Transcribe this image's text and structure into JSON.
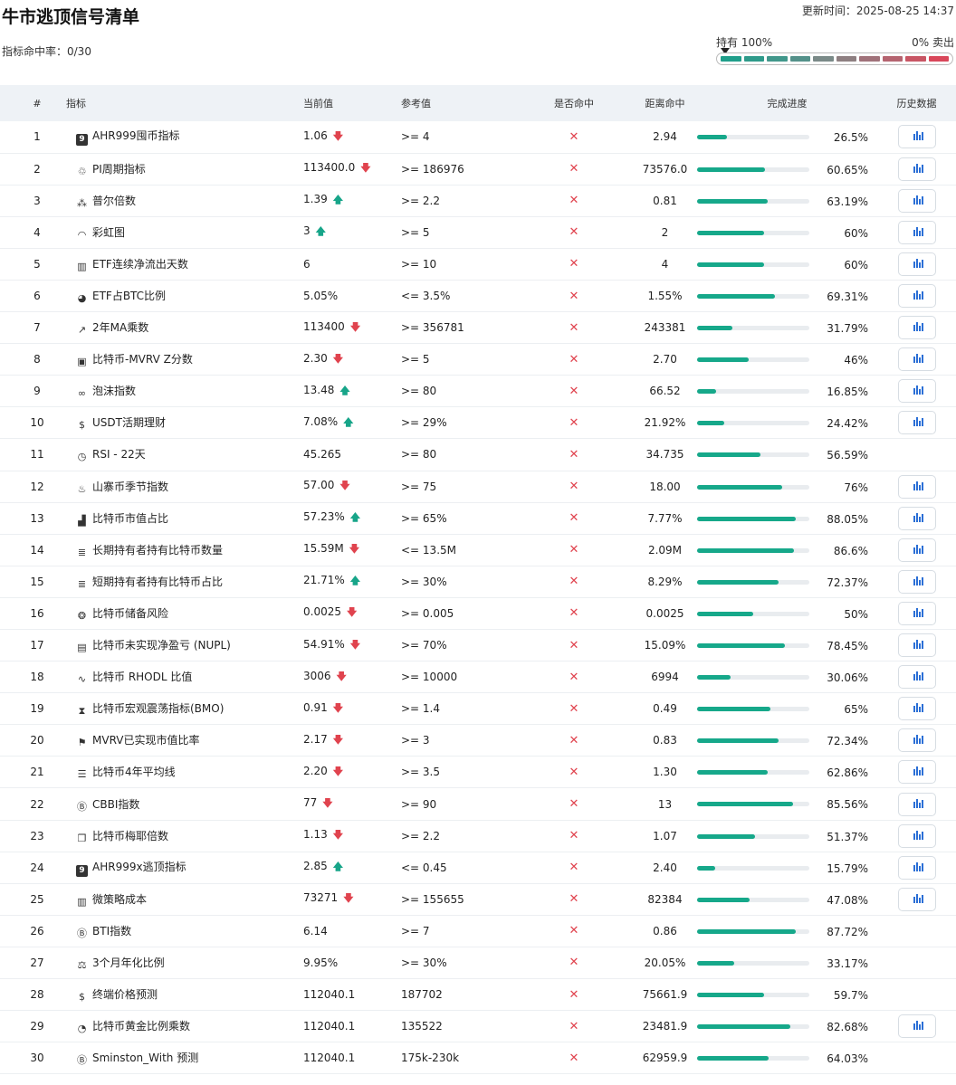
{
  "page_title": "牛市逃顶信号清单",
  "updated_time": "更新时间：2025-08-25 14:37",
  "hit_rate": "指标命中率：0/30",
  "gauge": {
    "left_label": "持有 100%",
    "right_label": "0% 卖出",
    "segments": [
      "#1f9e8a",
      "#2e9a8a",
      "#41978b",
      "#54918a",
      "#7a8a88",
      "#8e7f81",
      "#a0727a",
      "#b56470",
      "#c85664",
      "#d9475a"
    ]
  },
  "columns": [
    "#",
    "指标",
    "当前值",
    "参考值",
    "是否命中",
    "距离命中",
    "完成进度",
    "历史数据"
  ],
  "rows": [
    {
      "num": "1",
      "icon": "9",
      "iconbox": true,
      "name": "AHR999囤币指标",
      "current": "1.06",
      "arrow": "down",
      "ref": ">= 4",
      "distance": "2.94",
      "pct": 26.5,
      "pct_label": "26.5%",
      "history": true
    },
    {
      "num": "2",
      "icon": "♲",
      "name": "PI周期指标",
      "current": "113400.0",
      "arrow": "down",
      "ref": ">= 186976",
      "distance": "73576.0",
      "pct": 60.65,
      "pct_label": "60.65%",
      "history": true
    },
    {
      "num": "3",
      "icon": "⁂",
      "name": "普尔倍数",
      "current": "1.39",
      "arrow": "up",
      "ref": ">= 2.2",
      "distance": "0.81",
      "pct": 63.19,
      "pct_label": "63.19%",
      "history": true
    },
    {
      "num": "4",
      "icon": "◠",
      "name": "彩虹图",
      "current": "3",
      "arrow": "up",
      "ref": ">= 5",
      "distance": "2",
      "pct": 60,
      "pct_label": "60%",
      "history": true
    },
    {
      "num": "5",
      "icon": "▥",
      "name": "ETF连续净流出天数",
      "current": "6",
      "arrow": "",
      "ref": ">= 10",
      "distance": "4",
      "pct": 60,
      "pct_label": "60%",
      "history": true
    },
    {
      "num": "6",
      "icon": "◕",
      "name": "ETF占BTC比例",
      "current": "5.05%",
      "arrow": "",
      "ref": "<= 3.5%",
      "distance": "1.55%",
      "pct": 69.31,
      "pct_label": "69.31%",
      "history": true
    },
    {
      "num": "7",
      "icon": "↗",
      "name": "2年MA乘数",
      "current": "113400",
      "arrow": "down",
      "ref": ">= 356781",
      "distance": "243381",
      "pct": 31.79,
      "pct_label": "31.79%",
      "history": true
    },
    {
      "num": "8",
      "icon": "▣",
      "name": "比特币-MVRV Z分数",
      "current": "2.30",
      "arrow": "down",
      "ref": ">= 5",
      "distance": "2.70",
      "pct": 46,
      "pct_label": "46%",
      "history": true
    },
    {
      "num": "9",
      "icon": "∞",
      "name": "泡沫指数",
      "current": "13.48",
      "arrow": "up",
      "ref": ">= 80",
      "distance": "66.52",
      "pct": 16.85,
      "pct_label": "16.85%",
      "history": true
    },
    {
      "num": "10",
      "icon": "$",
      "name": "USDT活期理财",
      "current": "7.08%",
      "arrow": "up",
      "ref": ">= 29%",
      "distance": "21.92%",
      "pct": 24.42,
      "pct_label": "24.42%",
      "history": true
    },
    {
      "num": "11",
      "icon": "◷",
      "name": "RSI - 22天",
      "current": "45.265",
      "arrow": "",
      "ref": ">= 80",
      "distance": "34.735",
      "pct": 56.59,
      "pct_label": "56.59%",
      "history": false
    },
    {
      "num": "12",
      "icon": "♨",
      "name": "山寨币季节指数",
      "current": "57.00",
      "arrow": "down",
      "ref": ">= 75",
      "distance": "18.00",
      "pct": 76,
      "pct_label": "76%",
      "history": true
    },
    {
      "num": "13",
      "icon": "▟",
      "name": "比特币市值占比",
      "current": "57.23%",
      "arrow": "up",
      "ref": ">= 65%",
      "distance": "7.77%",
      "pct": 88.05,
      "pct_label": "88.05%",
      "history": true
    },
    {
      "num": "14",
      "icon": "≣",
      "name": "长期持有者持有比特币数量",
      "current": "15.59M",
      "arrow": "down",
      "ref": "<= 13.5M",
      "distance": "2.09M",
      "pct": 86.6,
      "pct_label": "86.6%",
      "history": true
    },
    {
      "num": "15",
      "icon": "≣",
      "name": "短期持有者持有比特币占比",
      "current": "21.71%",
      "arrow": "up",
      "ref": ">= 30%",
      "distance": "8.29%",
      "pct": 72.37,
      "pct_label": "72.37%",
      "history": true
    },
    {
      "num": "16",
      "icon": "❂",
      "name": "比特币储备风险",
      "current": "0.0025",
      "arrow": "down",
      "ref": ">= 0.005",
      "distance": "0.0025",
      "pct": 50,
      "pct_label": "50%",
      "history": true
    },
    {
      "num": "17",
      "icon": "▤",
      "name": "比特币未实现净盈亏 (NUPL)",
      "current": "54.91%",
      "arrow": "down",
      "ref": ">= 70%",
      "distance": "15.09%",
      "pct": 78.45,
      "pct_label": "78.45%",
      "history": true
    },
    {
      "num": "18",
      "icon": "∿",
      "name": "比特币 RHODL 比值",
      "current": "3006",
      "arrow": "down",
      "ref": ">= 10000",
      "distance": "6994",
      "pct": 30.06,
      "pct_label": "30.06%",
      "history": true
    },
    {
      "num": "19",
      "icon": "⧗",
      "name": "比特币宏观震荡指标(BMO)",
      "current": "0.91",
      "arrow": "down",
      "ref": ">= 1.4",
      "distance": "0.49",
      "pct": 65,
      "pct_label": "65%",
      "history": true
    },
    {
      "num": "20",
      "icon": "⚑",
      "name": "MVRV已实现市值比率",
      "current": "2.17",
      "arrow": "down",
      "ref": ">= 3",
      "distance": "0.83",
      "pct": 72.34,
      "pct_label": "72.34%",
      "history": true
    },
    {
      "num": "21",
      "icon": "☰",
      "name": "比特币4年平均线",
      "current": "2.20",
      "arrow": "down",
      "ref": ">= 3.5",
      "distance": "1.30",
      "pct": 62.86,
      "pct_label": "62.86%",
      "history": true
    },
    {
      "num": "22",
      "icon": "Ⓑ",
      "name": "CBBI指数",
      "current": "77",
      "arrow": "down",
      "ref": ">= 90",
      "distance": "13",
      "pct": 85.56,
      "pct_label": "85.56%",
      "history": true
    },
    {
      "num": "23",
      "icon": "❐",
      "name": "比特币梅耶倍数",
      "current": "1.13",
      "arrow": "down",
      "ref": ">= 2.2",
      "distance": "1.07",
      "pct": 51.37,
      "pct_label": "51.37%",
      "history": true
    },
    {
      "num": "24",
      "icon": "9",
      "iconbox": true,
      "name": "AHR999x逃顶指标",
      "current": "2.85",
      "arrow": "up",
      "ref": "<= 0.45",
      "distance": "2.40",
      "pct": 15.79,
      "pct_label": "15.79%",
      "history": true
    },
    {
      "num": "25",
      "icon": "▥",
      "name": "微策略成本",
      "current": "73271",
      "arrow": "down",
      "ref": ">= 155655",
      "distance": "82384",
      "pct": 47.08,
      "pct_label": "47.08%",
      "history": true
    },
    {
      "num": "26",
      "icon": "Ⓑ",
      "name": "BTI指数",
      "current": "6.14",
      "arrow": "",
      "ref": ">= 7",
      "distance": "0.86",
      "pct": 87.72,
      "pct_label": "87.72%",
      "history": false
    },
    {
      "num": "27",
      "icon": "⚖",
      "name": "3个月年化比例",
      "current": "9.95%",
      "arrow": "",
      "ref": ">= 30%",
      "distance": "20.05%",
      "pct": 33.17,
      "pct_label": "33.17%",
      "history": false
    },
    {
      "num": "28",
      "icon": "$",
      "name": "终端价格预测",
      "current": "112040.1",
      "arrow": "",
      "ref": "187702",
      "distance": "75661.9",
      "pct": 59.7,
      "pct_label": "59.7%",
      "history": false
    },
    {
      "num": "29",
      "icon": "◔",
      "name": "比特币黄金比例乘数",
      "current": "112040.1",
      "arrow": "",
      "ref": "135522",
      "distance": "23481.9",
      "pct": 82.68,
      "pct_label": "82.68%",
      "history": true
    },
    {
      "num": "30",
      "icon": "Ⓑ",
      "name": "Sminston_With 预测",
      "current": "112040.1",
      "arrow": "",
      "ref": "175k-230k",
      "distance": "62959.9",
      "pct": 64.03,
      "pct_label": "64.03%",
      "history": false
    }
  ],
  "icons": {
    "hit": "✕",
    "down_arrow": "🡇",
    "up_arrow": "🡅",
    "history": "bar-chart-icon"
  },
  "colors": {
    "accent": "#16a88a",
    "down": "#e0434e",
    "up": "#17a589",
    "history": "#2b6fd6"
  }
}
